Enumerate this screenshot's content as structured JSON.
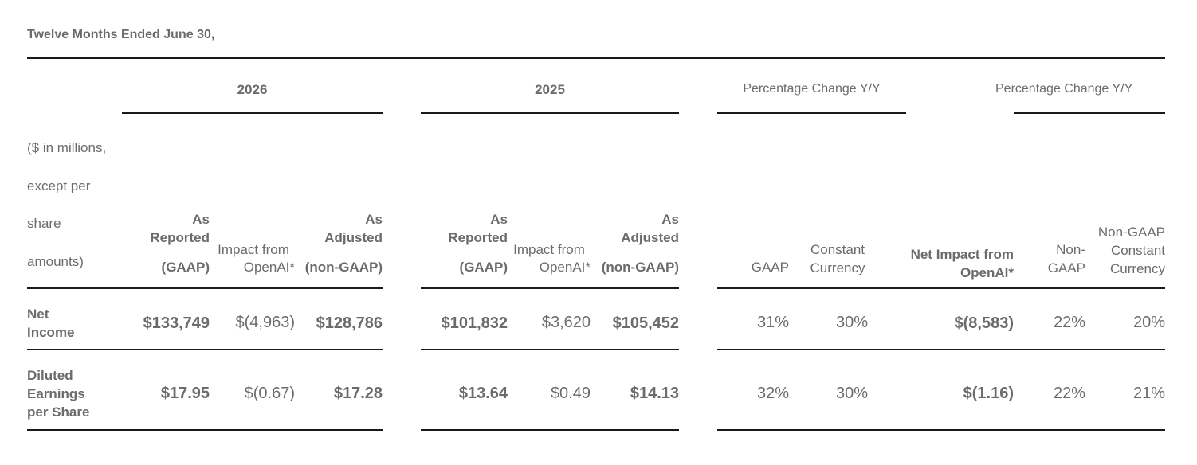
{
  "title": "Twelve Months Ended June 30,",
  "periods": {
    "y2026": "2026",
    "y2025": "2025",
    "pct1": "Percentage Change Y/Y",
    "pct2": "Percentage Change Y/Y"
  },
  "rowhead": {
    "line1": "($ in millions,",
    "line2": "except per",
    "line3": "share",
    "line4": "amounts)"
  },
  "columns": {
    "reported_a": "As",
    "reported_b": "Reported",
    "reported_c": "(GAAP)",
    "impact_a": "Impact from",
    "impact_b": "OpenAI*",
    "adjusted_a": "As",
    "adjusted_b": "Adjusted",
    "adjusted_c": "(non-GAAP)",
    "gaap": "GAAP",
    "cc_a": "Constant",
    "cc_b": "Currency",
    "net_a": "Net Impact from",
    "net_b": "OpenAI*",
    "nongaap_a": "Non-",
    "nongaap_b": "GAAP",
    "ngcc_a": "Non-GAAP",
    "ngcc_b": "Constant",
    "ngcc_c": "Currency"
  },
  "rows": [
    {
      "label": "Net\nIncome",
      "r26": "$133,749",
      "i26": "$(4,963)",
      "a26": "$128,786",
      "r25": "$101,832",
      "i25": "$3,620",
      "a25": "$105,452",
      "gaap": "31%",
      "cc": "30%",
      "net": "$(8,583)",
      "nongaap": "22%",
      "ngcc": "20%"
    },
    {
      "label": "Diluted\nEarnings\nper Share",
      "r26": "$17.95",
      "i26": "$(0.67)",
      "a26": "$17.28",
      "r25": "$13.64",
      "i25": "$0.49",
      "a25": "$14.13",
      "gaap": "32%",
      "cc": "30%",
      "net": "$(1.16)",
      "nongaap": "22%",
      "ngcc": "21%"
    }
  ]
}
